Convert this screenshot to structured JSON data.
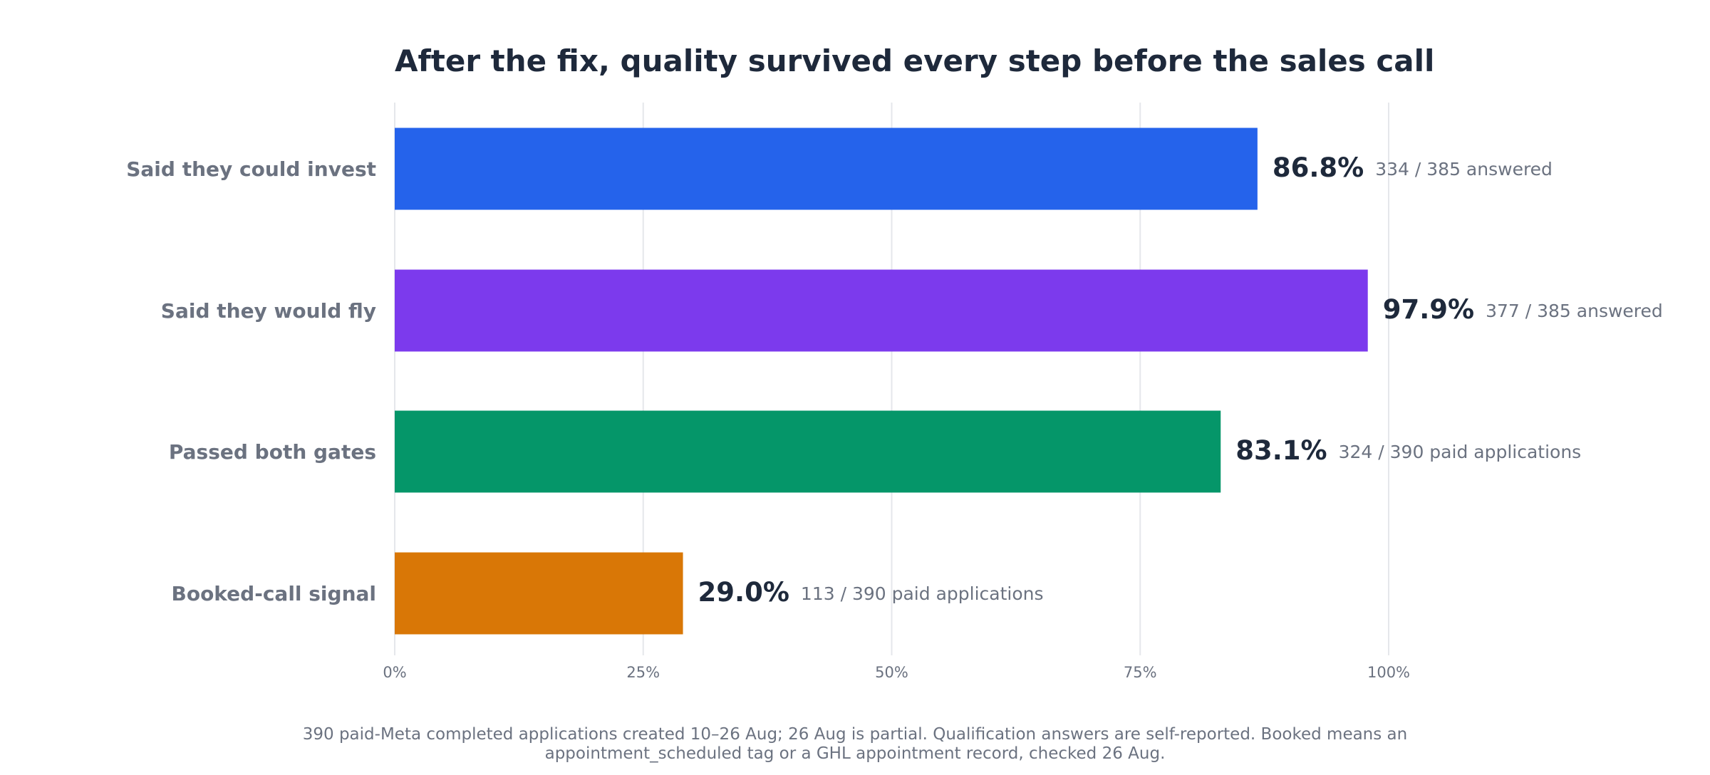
{
  "chart_data": {
    "type": "bar",
    "orientation": "horizontal",
    "title": "After the fix, quality survived every step before the sales call",
    "categories": [
      "Said they could invest",
      "Said they would fly",
      "Passed both gates",
      "Booked-call signal"
    ],
    "values": [
      86.8,
      97.9,
      83.1,
      29.0
    ],
    "value_labels": [
      "86.8%",
      "97.9%",
      "83.1%",
      "29.0%"
    ],
    "detail_labels": [
      "334 / 385 answered",
      "377 / 385 answered",
      "324 / 390 paid applications",
      "113 / 390 paid applications"
    ],
    "colors": [
      "#2563eb",
      "#7c3aed",
      "#059669",
      "#d97706"
    ],
    "xlim": [
      0,
      100
    ],
    "x_ticks": [
      0,
      25,
      50,
      75,
      100
    ],
    "x_tick_labels": [
      "0%",
      "25%",
      "50%",
      "75%",
      "100%"
    ],
    "grid": "vertical",
    "xlabel": "",
    "ylabel": ""
  },
  "footnote": {
    "line1": "390 paid-Meta completed applications created 10–26 Aug; 26 Aug is partial. Qualification answers are self-reported. Booked means an",
    "line2": "appointment_scheduled tag or a GHL appointment record, checked 26 Aug."
  }
}
